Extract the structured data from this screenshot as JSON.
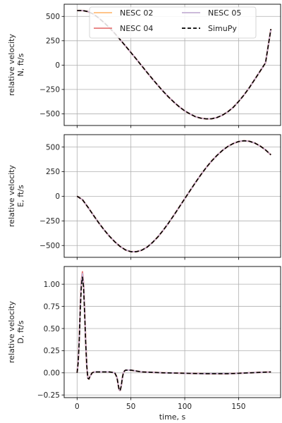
{
  "chart_data": [
    {
      "type": "line",
      "ylabel_lines": [
        "relative velocity",
        "N, ft/s"
      ],
      "xlabel": "",
      "xlim": [
        -12,
        189
      ],
      "ylim": [
        -620,
        625
      ],
      "xticks": [
        0,
        50,
        100,
        150
      ],
      "show_xtick_labels": false,
      "yticks": [
        -500,
        -250,
        0,
        250,
        500
      ],
      "ytick_labels": [
        "−500",
        "−250",
        "0",
        "250",
        "500"
      ],
      "grid": true,
      "legend": {
        "placement": "top-center",
        "entries": [
          "NESC 02",
          "NESC 04",
          "NESC 05",
          "SimuPy"
        ]
      },
      "series": [
        {
          "name": "NESC 02",
          "color": "#ffbb78",
          "style": "solid",
          "x": [
            0,
            5,
            10,
            15,
            20,
            25,
            30,
            35,
            40,
            45,
            50,
            55,
            60,
            65,
            70,
            75,
            80,
            85,
            90,
            95,
            100,
            105,
            110,
            115,
            120,
            125,
            130,
            135,
            140,
            145,
            150,
            155,
            160,
            165,
            170,
            175,
            180
          ],
          "y": [
            560,
            560,
            550,
            525,
            485,
            437,
            384,
            326,
            261,
            196,
            129,
            62,
            -7,
            -75,
            -142,
            -207,
            -270,
            -328,
            -381,
            -429,
            -470,
            -502,
            -530,
            -545,
            -552,
            -551,
            -538,
            -514,
            -479,
            -434,
            -374,
            -307,
            -231,
            -147,
            -62,
            23,
            370
          ]
        },
        {
          "name": "NESC 04",
          "color": "#e77979",
          "style": "solid",
          "x": [
            0,
            5,
            10,
            15,
            20,
            25,
            30,
            35,
            40,
            45,
            50,
            55,
            60,
            65,
            70,
            75,
            80,
            85,
            90,
            95,
            100,
            105,
            110,
            115,
            120,
            125,
            130,
            135,
            140,
            145,
            150,
            155,
            160,
            165,
            170,
            175,
            180
          ],
          "y": [
            560,
            560,
            550,
            525,
            485,
            437,
            384,
            326,
            261,
            196,
            129,
            62,
            -7,
            -75,
            -142,
            -207,
            -270,
            -328,
            -381,
            -429,
            -470,
            -502,
            -530,
            -545,
            -552,
            -551,
            -538,
            -514,
            -479,
            -434,
            -374,
            -307,
            -231,
            -147,
            -62,
            23,
            370
          ]
        },
        {
          "name": "NESC 05",
          "color": "#c5b0d5",
          "style": "solid",
          "x": [
            0,
            5,
            10,
            15,
            20,
            25,
            30,
            35,
            40,
            45,
            50,
            55,
            60,
            65,
            70,
            75,
            80,
            85,
            90,
            95,
            100,
            105,
            110,
            115,
            120,
            125,
            130,
            135,
            140,
            145,
            150,
            155,
            160,
            165,
            170,
            175,
            180
          ],
          "y": [
            560,
            560,
            550,
            525,
            485,
            437,
            384,
            326,
            261,
            196,
            129,
            62,
            -7,
            -75,
            -142,
            -207,
            -270,
            -328,
            -381,
            -429,
            -470,
            -502,
            -530,
            -545,
            -552,
            -551,
            -538,
            -514,
            -479,
            -434,
            -374,
            -307,
            -231,
            -147,
            -62,
            23,
            370
          ]
        },
        {
          "name": "SimuPy",
          "color": "#000000",
          "style": "dashed",
          "x": [
            0,
            5,
            10,
            15,
            20,
            25,
            30,
            35,
            40,
            45,
            50,
            55,
            60,
            65,
            70,
            75,
            80,
            85,
            90,
            95,
            100,
            105,
            110,
            115,
            120,
            125,
            130,
            135,
            140,
            145,
            150,
            155,
            160,
            165,
            170,
            175,
            180
          ],
          "y": [
            560,
            560,
            550,
            525,
            485,
            437,
            384,
            326,
            261,
            196,
            129,
            62,
            -7,
            -75,
            -142,
            -207,
            -270,
            -328,
            -381,
            -429,
            -470,
            -502,
            -530,
            -545,
            -552,
            -551,
            -538,
            -514,
            -479,
            -434,
            -374,
            -307,
            -231,
            -147,
            -62,
            23,
            370
          ]
        }
      ]
    },
    {
      "type": "line",
      "ylabel_lines": [
        "relative velocity",
        "E, ft/s"
      ],
      "xlabel": "",
      "xlim": [
        -12,
        189
      ],
      "ylim": [
        -620,
        625
      ],
      "xticks": [
        0,
        50,
        100,
        150
      ],
      "show_xtick_labels": false,
      "yticks": [
        -500,
        -250,
        0,
        250,
        500
      ],
      "ytick_labels": [
        "−500",
        "−250",
        "0",
        "250",
        "500"
      ],
      "grid": true,
      "series": [
        {
          "name": "NESC 02",
          "color": "#ffbb78",
          "style": "solid",
          "x": [
            0,
            5,
            10,
            15,
            20,
            25,
            30,
            35,
            40,
            45,
            50,
            55,
            60,
            65,
            70,
            75,
            80,
            85,
            90,
            95,
            100,
            105,
            110,
            115,
            120,
            125,
            130,
            135,
            140,
            145,
            150,
            155,
            160,
            165,
            170,
            175,
            180
          ],
          "y": [
            0,
            -35,
            -110,
            -190,
            -268,
            -340,
            -405,
            -462,
            -510,
            -545,
            -563,
            -563,
            -548,
            -517,
            -470,
            -413,
            -345,
            -271,
            -191,
            -108,
            -25,
            58,
            140,
            219,
            292,
            358,
            415,
            465,
            505,
            535,
            555,
            563,
            558,
            540,
            510,
            470,
            420
          ]
        },
        {
          "name": "NESC 04",
          "color": "#e77979",
          "style": "solid",
          "x": [
            0,
            5,
            10,
            15,
            20,
            25,
            30,
            35,
            40,
            45,
            50,
            55,
            60,
            65,
            70,
            75,
            80,
            85,
            90,
            95,
            100,
            105,
            110,
            115,
            120,
            125,
            130,
            135,
            140,
            145,
            150,
            155,
            160,
            165,
            170,
            175,
            180
          ],
          "y": [
            0,
            -35,
            -110,
            -190,
            -268,
            -340,
            -405,
            -462,
            -510,
            -545,
            -563,
            -563,
            -548,
            -517,
            -470,
            -413,
            -345,
            -271,
            -191,
            -108,
            -25,
            58,
            140,
            219,
            292,
            358,
            415,
            465,
            505,
            535,
            555,
            563,
            558,
            540,
            510,
            470,
            420
          ]
        },
        {
          "name": "NESC 05",
          "color": "#c5b0d5",
          "style": "solid",
          "x": [
            0,
            5,
            10,
            15,
            20,
            25,
            30,
            35,
            40,
            45,
            50,
            55,
            60,
            65,
            70,
            75,
            80,
            85,
            90,
            95,
            100,
            105,
            110,
            115,
            120,
            125,
            130,
            135,
            140,
            145,
            150,
            155,
            160,
            165,
            170,
            175,
            180
          ],
          "y": [
            0,
            -35,
            -110,
            -190,
            -268,
            -340,
            -405,
            -462,
            -510,
            -545,
            -563,
            -563,
            -548,
            -517,
            -470,
            -413,
            -345,
            -271,
            -191,
            -108,
            -25,
            58,
            140,
            219,
            292,
            358,
            415,
            465,
            505,
            535,
            555,
            563,
            558,
            540,
            510,
            470,
            420
          ]
        },
        {
          "name": "SimuPy",
          "color": "#000000",
          "style": "dashed",
          "x": [
            0,
            5,
            10,
            15,
            20,
            25,
            30,
            35,
            40,
            45,
            50,
            55,
            60,
            65,
            70,
            75,
            80,
            85,
            90,
            95,
            100,
            105,
            110,
            115,
            120,
            125,
            130,
            135,
            140,
            145,
            150,
            155,
            160,
            165,
            170,
            175,
            180
          ],
          "y": [
            0,
            -35,
            -110,
            -190,
            -268,
            -340,
            -405,
            -462,
            -510,
            -545,
            -563,
            -563,
            -548,
            -517,
            -470,
            -413,
            -345,
            -271,
            -191,
            -108,
            -25,
            58,
            140,
            219,
            292,
            358,
            415,
            465,
            505,
            535,
            555,
            563,
            558,
            540,
            510,
            470,
            420
          ]
        }
      ]
    },
    {
      "type": "line",
      "ylabel_lines": [
        "relative velocity",
        "D, ft/s"
      ],
      "xlabel": "time, s",
      "xlim": [
        -12,
        189
      ],
      "ylim": [
        -0.28,
        1.2
      ],
      "xticks": [
        0,
        50,
        100,
        150
      ],
      "xtick_labels": [
        "0",
        "50",
        "100",
        "150"
      ],
      "show_xtick_labels": true,
      "yticks": [
        -0.25,
        0.0,
        0.25,
        0.5,
        0.75,
        1.0
      ],
      "ytick_labels": [
        "−0.25",
        "0.00",
        "0.25",
        "0.50",
        "0.75",
        "1.00"
      ],
      "grid": true,
      "series": [
        {
          "name": "NESC 02",
          "color": "#ffbb78",
          "style": "solid",
          "x": [
            0,
            1,
            2,
            3,
            4,
            5,
            6,
            7,
            8,
            9,
            10,
            11,
            12,
            14,
            16,
            18,
            20,
            25,
            30,
            35,
            37,
            38,
            39,
            40,
            41,
            42,
            43,
            44,
            45,
            47,
            50,
            55,
            60,
            70,
            80,
            100,
            120,
            140,
            160,
            170,
            180
          ],
          "y": [
            0,
            0.12,
            0.38,
            0.75,
            1.03,
            1.12,
            1.0,
            0.7,
            0.35,
            0.08,
            -0.06,
            -0.07,
            -0.04,
            0.0,
            0.01,
            0.01,
            0.01,
            0.01,
            0.01,
            0.0,
            -0.05,
            -0.12,
            -0.19,
            -0.2,
            -0.15,
            -0.06,
            0.0,
            0.02,
            0.03,
            0.03,
            0.03,
            0.02,
            0.01,
            0.005,
            0.0,
            -0.005,
            -0.01,
            -0.01,
            0.0,
            0.005,
            0.01
          ]
        },
        {
          "name": "NESC 04",
          "color": "#e77979",
          "style": "solid",
          "x": [
            0,
            1,
            2,
            3,
            4,
            5,
            6,
            7,
            8,
            9,
            10,
            11,
            12,
            14,
            16,
            18,
            20,
            25,
            30,
            35,
            37,
            38,
            39,
            40,
            41,
            42,
            43,
            44,
            45,
            47,
            50,
            55,
            60,
            70,
            80,
            100,
            120,
            140,
            160,
            170,
            180
          ],
          "y": [
            0,
            0.12,
            0.39,
            0.76,
            1.05,
            1.14,
            1.01,
            0.71,
            0.35,
            0.08,
            -0.06,
            -0.07,
            -0.04,
            0.0,
            0.01,
            0.01,
            0.01,
            0.01,
            0.01,
            0.0,
            -0.05,
            -0.12,
            -0.19,
            -0.2,
            -0.15,
            -0.06,
            0.0,
            0.02,
            0.03,
            0.03,
            0.03,
            0.02,
            0.01,
            0.005,
            0.0,
            -0.005,
            -0.01,
            -0.01,
            0.0,
            0.005,
            0.01
          ]
        },
        {
          "name": "NESC 05",
          "color": "#c5b0d5",
          "style": "solid",
          "x": [
            0,
            1,
            2,
            3,
            4,
            5,
            6,
            7,
            8,
            9,
            10,
            11,
            12,
            14,
            16,
            18,
            20,
            25,
            30,
            35,
            37,
            38,
            39,
            40,
            41,
            42,
            43,
            44,
            45,
            47,
            50,
            55,
            60,
            70,
            80,
            100,
            120,
            140,
            160,
            170,
            180
          ],
          "y": [
            0,
            0.12,
            0.38,
            0.75,
            1.03,
            1.12,
            1.0,
            0.7,
            0.35,
            0.08,
            -0.06,
            -0.07,
            -0.04,
            0.0,
            0.01,
            0.01,
            0.01,
            0.01,
            0.01,
            0.0,
            -0.05,
            -0.12,
            -0.19,
            -0.2,
            -0.15,
            -0.06,
            0.0,
            0.02,
            0.03,
            0.03,
            0.03,
            0.02,
            0.01,
            0.005,
            0.0,
            -0.005,
            -0.01,
            -0.01,
            0.0,
            0.005,
            0.01
          ]
        },
        {
          "name": "SimuPy",
          "color": "#000000",
          "style": "dashed",
          "x": [
            0,
            1,
            2,
            3,
            4,
            5,
            6,
            7,
            8,
            9,
            10,
            11,
            12,
            14,
            16,
            18,
            20,
            25,
            30,
            35,
            37,
            38,
            39,
            40,
            41,
            42,
            43,
            44,
            45,
            47,
            50,
            55,
            60,
            70,
            80,
            100,
            120,
            140,
            160,
            170,
            180
          ],
          "y": [
            0,
            0.11,
            0.36,
            0.72,
            0.99,
            1.08,
            0.97,
            0.68,
            0.34,
            0.08,
            -0.06,
            -0.07,
            -0.04,
            0.0,
            0.01,
            0.01,
            0.01,
            0.01,
            0.01,
            0.0,
            -0.05,
            -0.12,
            -0.19,
            -0.2,
            -0.15,
            -0.06,
            0.0,
            0.02,
            0.03,
            0.03,
            0.03,
            0.02,
            0.01,
            0.005,
            0.0,
            -0.005,
            -0.01,
            -0.01,
            0.0,
            0.005,
            0.01
          ]
        }
      ]
    }
  ]
}
